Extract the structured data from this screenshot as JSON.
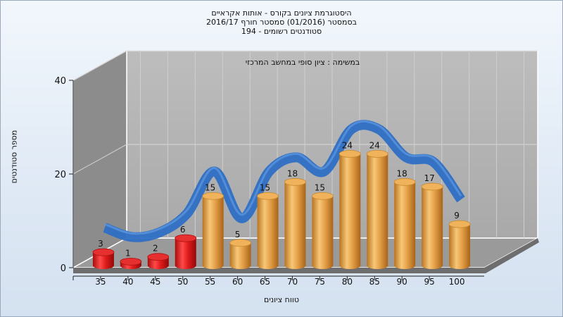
{
  "title_lines": [
    "היסטוגרמת ציונים בקורס - אותות אקראיים",
    "בסמסטר  (01/2016)  סמסטר חורף 2016/17",
    "סטודנטים רשומים - 194"
  ],
  "chart_data": {
    "type": "bar",
    "title": "היסטוגרמת ציונים בקורס - אותות אקראיים",
    "subtitle": "בסמסטר  (01/2016)  סמסטר חורף 2016/17 | סטודנטים רשומים - 194",
    "annotation": "במשימה : ציון סופי במחשב המרכזי",
    "xlabel": "טווח ציונים",
    "ylabel": "מספר סטודנטים",
    "ylim": [
      0,
      40
    ],
    "yticks": [
      0,
      20,
      40
    ],
    "grid": true,
    "categories": [
      "35",
      "40",
      "45",
      "50",
      "55",
      "60",
      "65",
      "70",
      "75",
      "80",
      "85",
      "90",
      "95",
      "100"
    ],
    "values": [
      3,
      1,
      2,
      6,
      15,
      5,
      15,
      18,
      15,
      24,
      24,
      18,
      17,
      9
    ],
    "colors": {
      "failing": "#d81818",
      "passing": "#e8a040",
      "trend": "#2e6fc4",
      "wall": "#b0b0b0",
      "side_wall": "#8a8a8a"
    },
    "failing_categories": [
      "35",
      "40",
      "45",
      "50"
    ],
    "trend_values": [
      3,
      1,
      2,
      6,
      15,
      5,
      15,
      18,
      15,
      24,
      24,
      18,
      17,
      9
    ]
  }
}
